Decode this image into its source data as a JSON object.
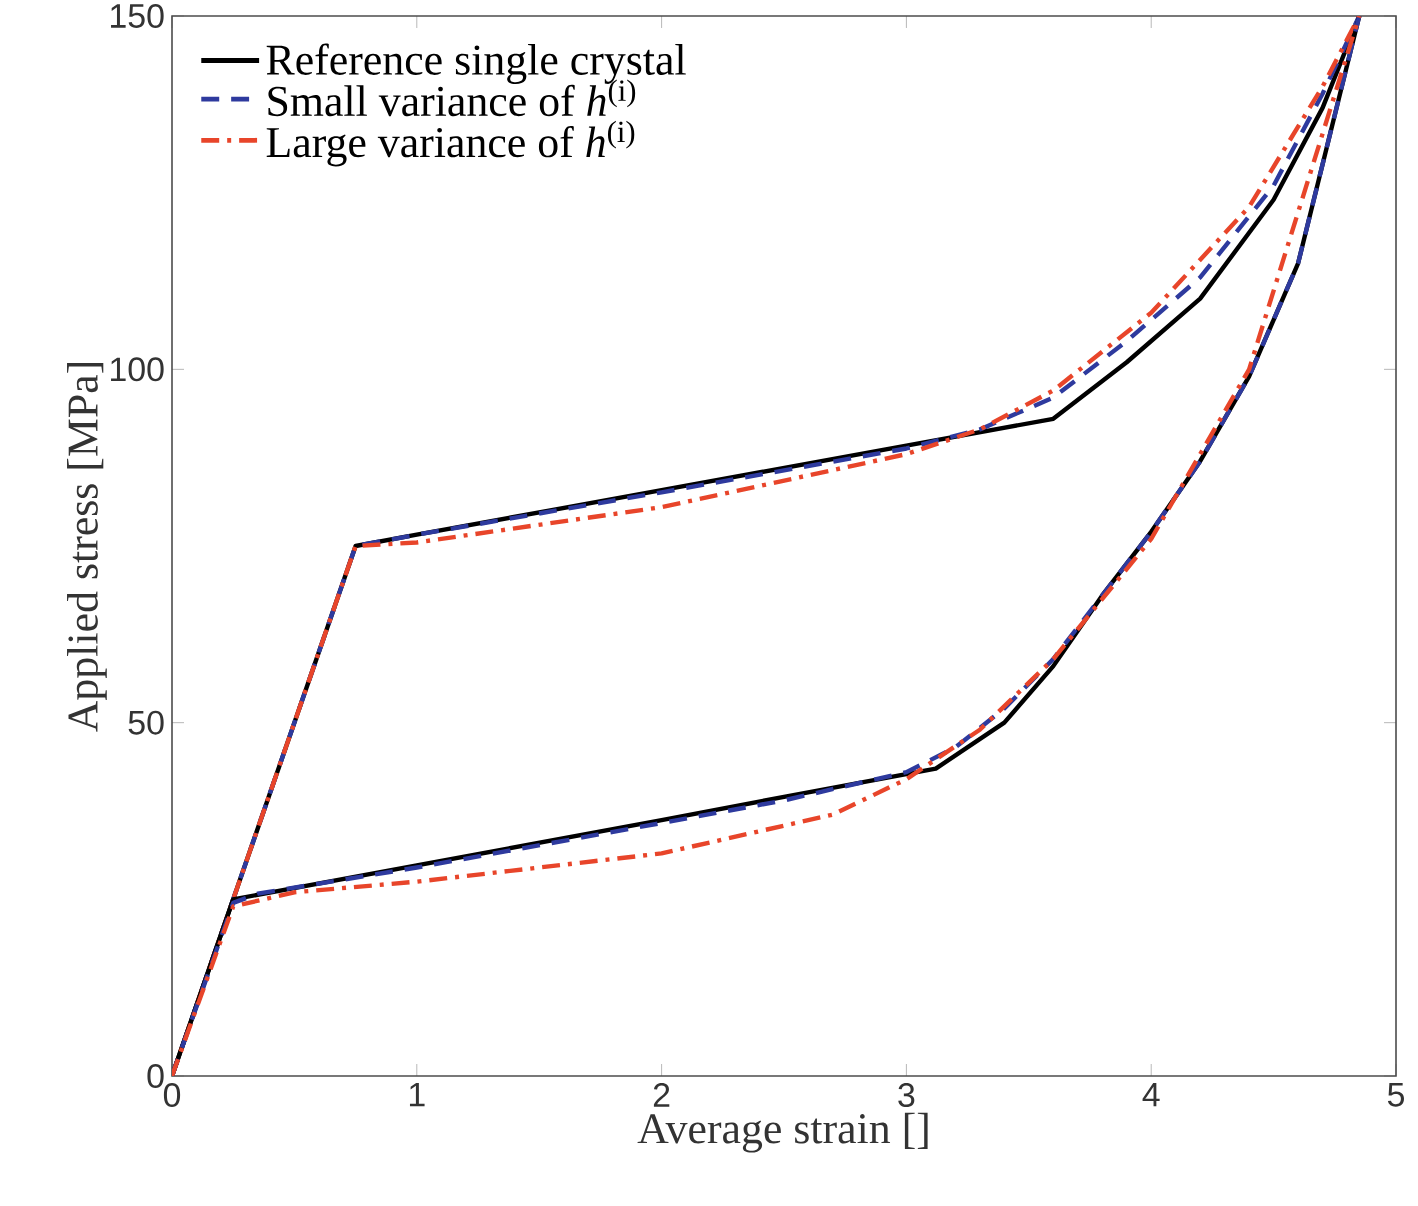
{
  "chart_data": {
    "type": "line",
    "xlabel": "Average strain []",
    "ylabel": "Applied stress [MPa]",
    "xlim": [
      0,
      5
    ],
    "ylim": [
      0,
      150
    ],
    "xticks": [
      0,
      1,
      2,
      3,
      4,
      5
    ],
    "yticks": [
      0,
      50,
      100,
      150
    ],
    "grid": false,
    "legend": "top left",
    "marker": "none",
    "series": [
      {
        "name": "Reference single crystal",
        "color": "#000000",
        "line_style": "solid",
        "x": [
          0,
          0.75,
          1,
          2,
          3,
          3.6,
          3.9,
          4.2,
          4.5,
          4.7,
          4.85
        ],
        "values": [
          0,
          75,
          76.6,
          82.9,
          89.2,
          93,
          101,
          110,
          124,
          137,
          150
        ]
      },
      {
        "name": "Small variance of *h*$^{(i)}$",
        "color": "#2e3a9e",
        "line_style": "dashed",
        "x": [
          0,
          0.75,
          1,
          2,
          3,
          3.3,
          3.6,
          3.9,
          4.2,
          4.5,
          4.7,
          4.85
        ],
        "values": [
          0,
          75,
          76.6,
          82.6,
          88.8,
          91.5,
          96,
          104,
          113,
          126,
          139,
          150
        ]
      },
      {
        "name": "Large variance of *h*$^{(i)}$",
        "color": "#e8452a",
        "line_style": "dashdot",
        "x": [
          0,
          0.75,
          1,
          2,
          3,
          3.3,
          3.6,
          4.0,
          4.4,
          4.7,
          4.85
        ],
        "values": [
          0,
          75,
          75.5,
          80.5,
          88,
          91.5,
          97,
          108,
          123,
          140,
          150
        ]
      },
      {
        "color": "#000000",
        "line_style": "solid",
        "x": [
          0,
          0.25,
          1,
          2,
          2.5,
          3.12,
          3.4,
          3.6,
          3.8,
          4.0,
          4.2,
          4.4,
          4.6,
          4.85
        ],
        "values": [
          0,
          25,
          29.8,
          36.2,
          39.5,
          43.5,
          50,
          58,
          68,
          77,
          87,
          99,
          115,
          150
        ]
      },
      {
        "color": "#2e3a9e",
        "line_style": "dashed",
        "x": [
          0,
          0.25,
          0.35,
          1,
          2,
          2.5,
          3.0,
          3.2,
          3.4,
          3.6,
          3.8,
          4.0,
          4.2,
          4.4,
          4.6,
          4.85
        ],
        "values": [
          0,
          24.5,
          25.8,
          29.5,
          35.8,
          39,
          43,
          46.5,
          52,
          59,
          68,
          77,
          87,
          99,
          115,
          150
        ]
      },
      {
        "color": "#e8452a",
        "line_style": "dashdot",
        "x": [
          0,
          0.25,
          0.5,
          1,
          2,
          2.7,
          3.0,
          3.3,
          3.6,
          4.0,
          4.4,
          4.85
        ],
        "values": [
          0,
          24,
          26,
          27.5,
          31.5,
          37,
          42,
          49,
          59,
          76,
          100,
          150
        ]
      }
    ]
  }
}
